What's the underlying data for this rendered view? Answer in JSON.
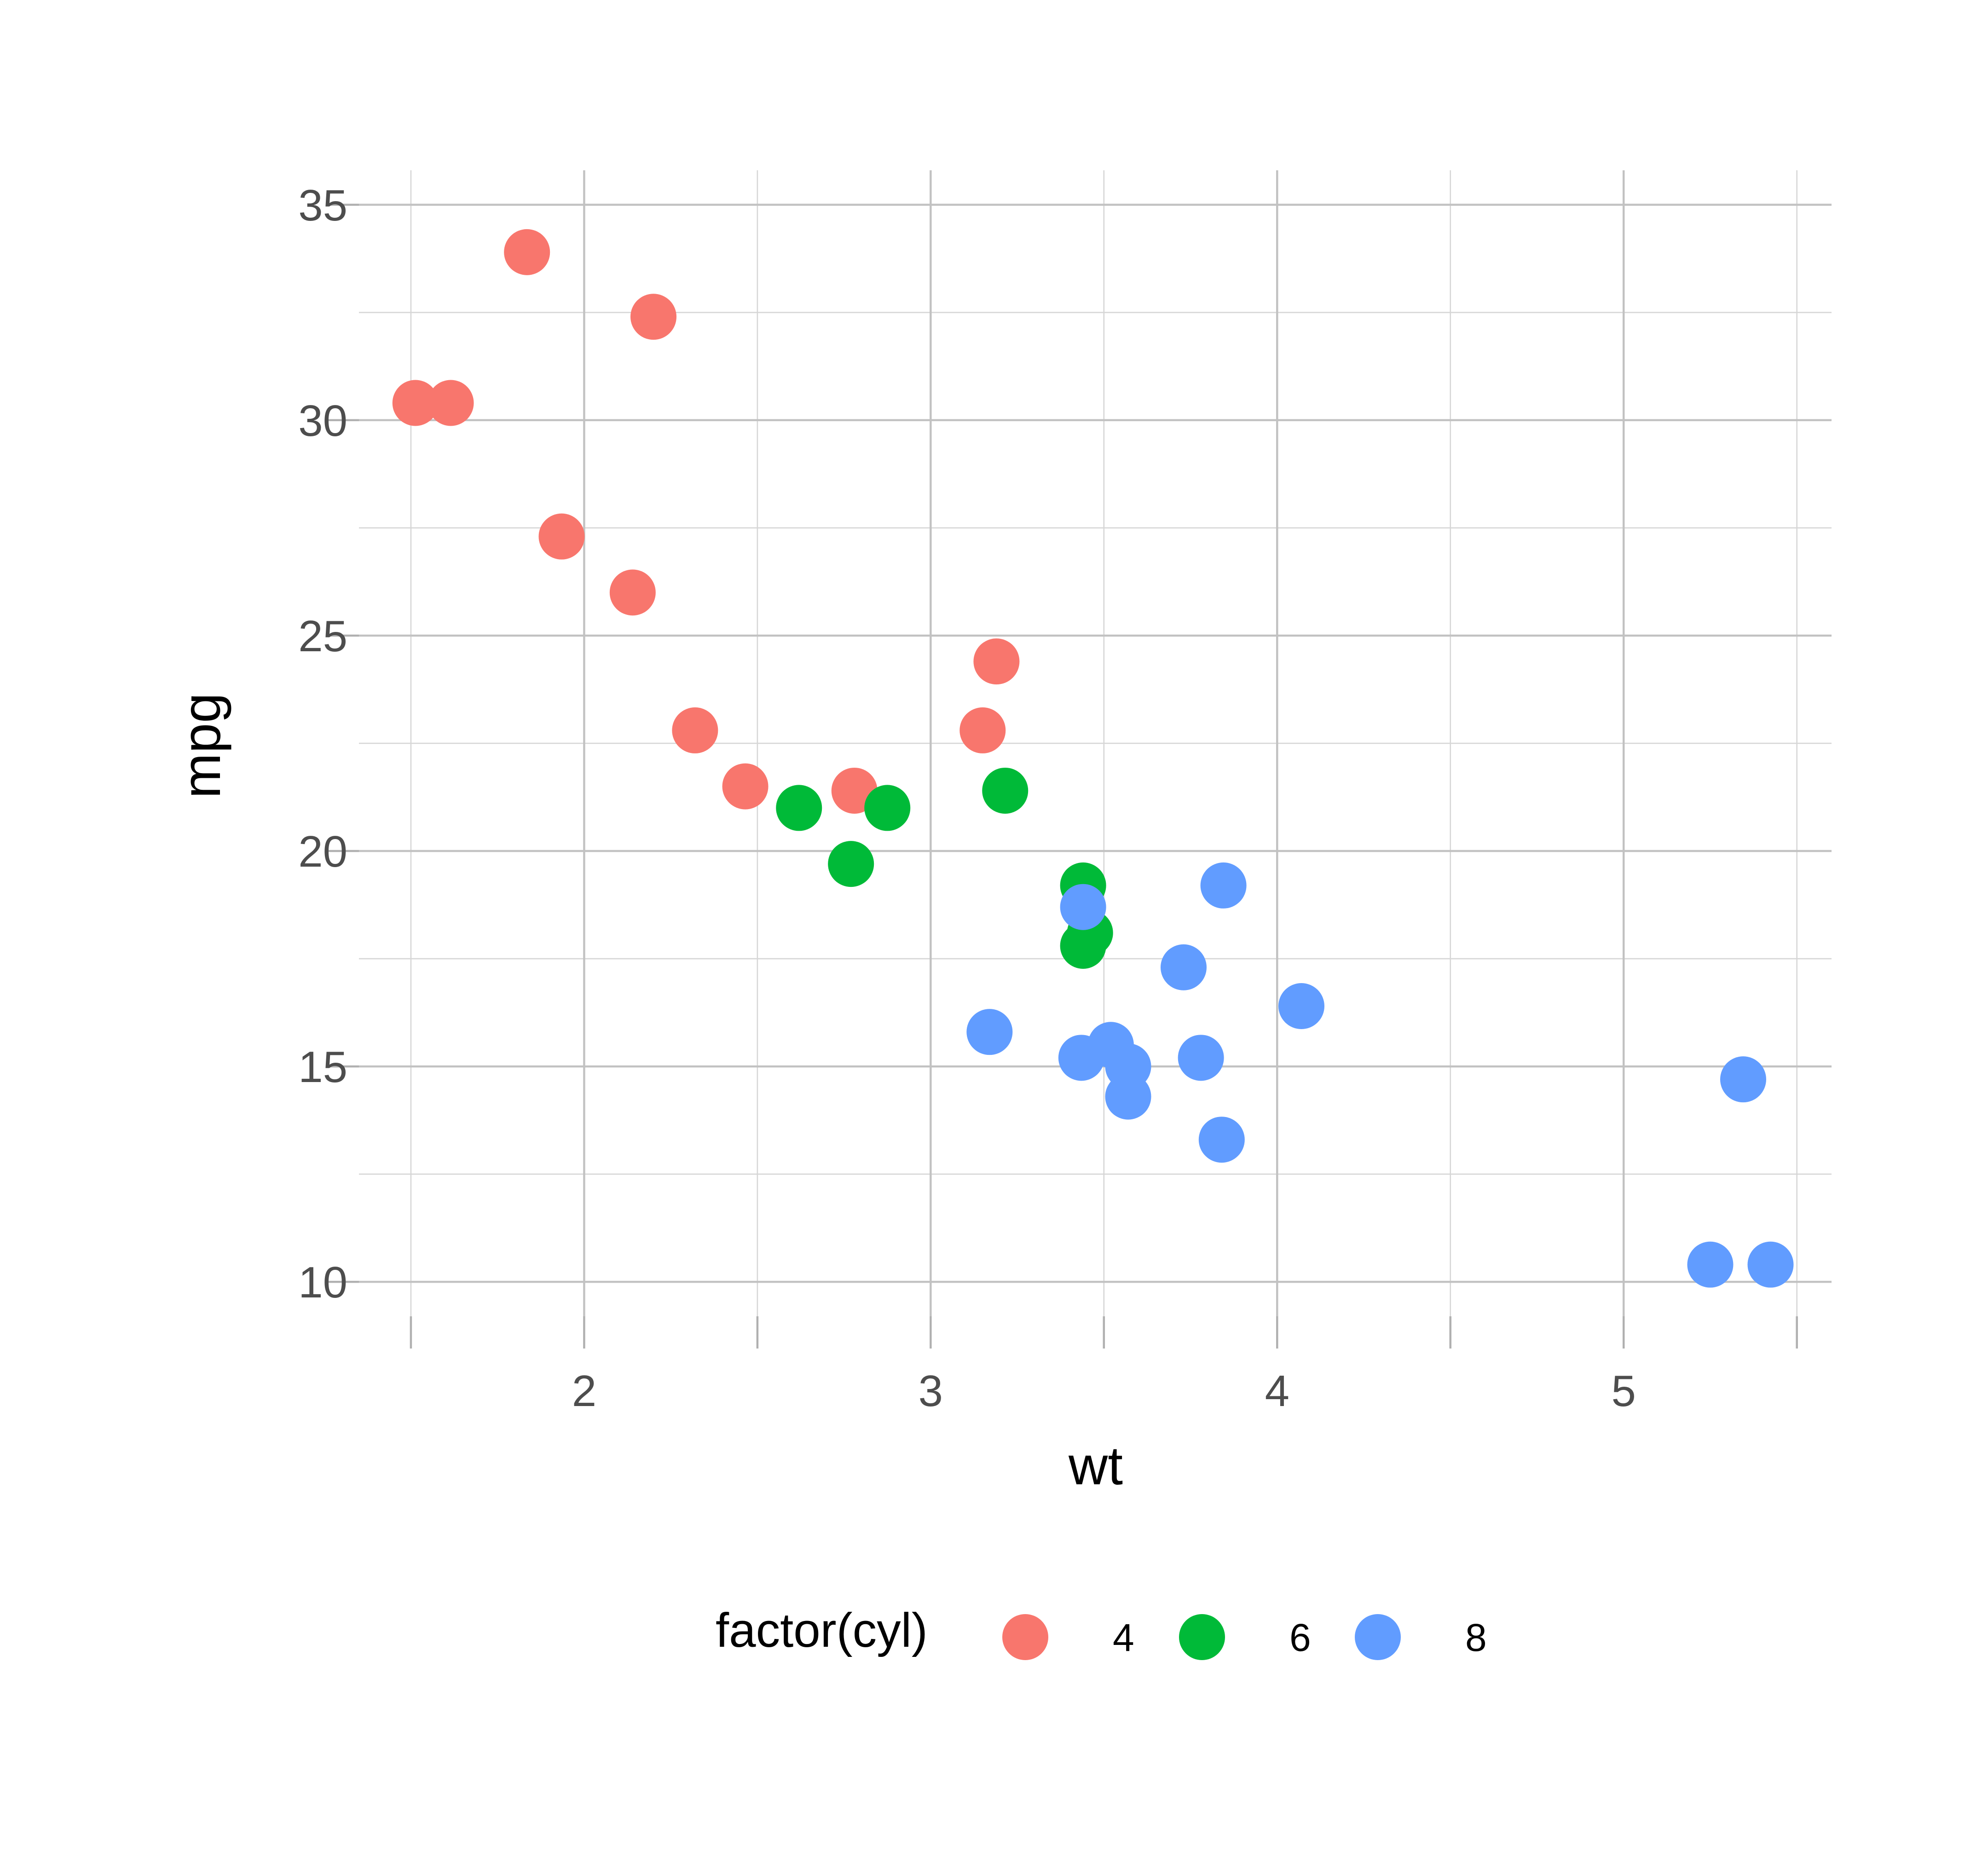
{
  "chart_data": {
    "type": "scatter",
    "xlabel": "wt",
    "ylabel": "mpg",
    "xlim": [
      1.35,
      5.6
    ],
    "ylim": [
      9.2,
      35.8
    ],
    "x_ticks": [
      2,
      3,
      4,
      5
    ],
    "y_ticks": [
      10,
      15,
      20,
      25,
      30,
      35
    ],
    "grid": true,
    "legend": {
      "title": "factor(cyl)",
      "position": "bottom"
    },
    "series": [
      {
        "name": "4",
        "color": "#F8766D",
        "points": [
          [
            1.513,
            30.4
          ],
          [
            1.615,
            30.4
          ],
          [
            1.835,
            33.9
          ],
          [
            1.935,
            27.3
          ],
          [
            2.14,
            26.0
          ],
          [
            2.2,
            32.4
          ],
          [
            2.32,
            22.8
          ],
          [
            2.465,
            21.5
          ],
          [
            2.78,
            21.4
          ],
          [
            3.15,
            22.8
          ],
          [
            3.19,
            24.4
          ]
        ]
      },
      {
        "name": "6",
        "color": "#00BA38",
        "points": [
          [
            2.62,
            21.0
          ],
          [
            2.77,
            19.7
          ],
          [
            2.875,
            21.0
          ],
          [
            3.215,
            21.4
          ],
          [
            3.44,
            19.2
          ],
          [
            3.44,
            17.8
          ],
          [
            3.46,
            18.1
          ]
        ]
      },
      {
        "name": "8",
        "color": "#619CFF",
        "points": [
          [
            3.17,
            15.8
          ],
          [
            3.435,
            15.2
          ],
          [
            3.44,
            18.7
          ],
          [
            3.52,
            15.5
          ],
          [
            3.57,
            15.0
          ],
          [
            3.57,
            14.3
          ],
          [
            3.73,
            17.3
          ],
          [
            3.78,
            15.2
          ],
          [
            3.84,
            13.3
          ],
          [
            3.845,
            19.2
          ],
          [
            4.07,
            16.4
          ],
          [
            5.25,
            10.4
          ],
          [
            5.345,
            14.7
          ],
          [
            5.424,
            10.4
          ]
        ]
      }
    ]
  }
}
